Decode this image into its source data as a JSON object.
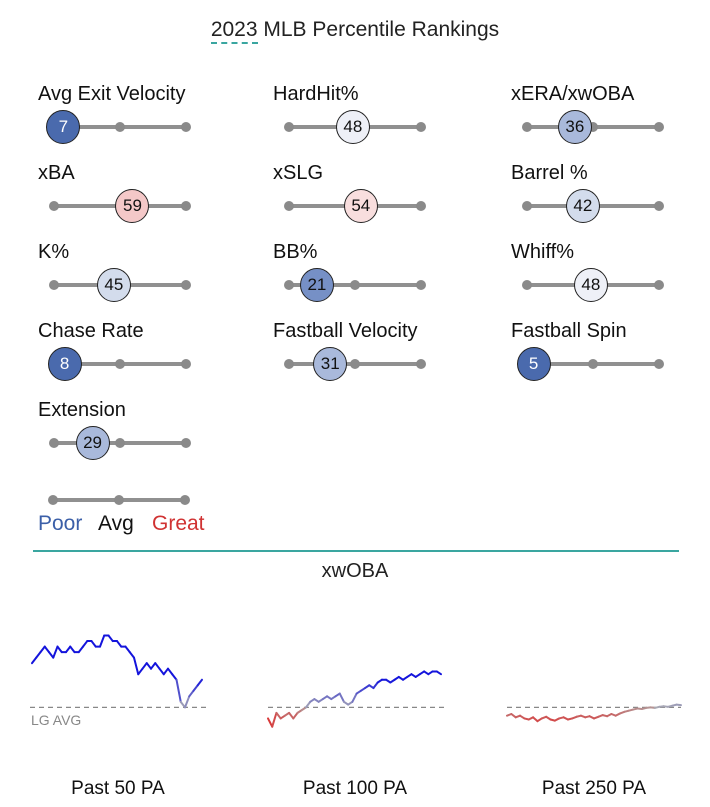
{
  "title_year": "2023",
  "title_rest": " MLB Percentile Rankings",
  "metrics": [
    {
      "label": "Avg Exit Velocity",
      "value": 7
    },
    {
      "label": "HardHit%",
      "value": 48
    },
    {
      "label": "xERA/xwOBA",
      "value": 36
    },
    {
      "label": "xBA",
      "value": 59
    },
    {
      "label": "xSLG",
      "value": 54
    },
    {
      "label": "Barrel %",
      "value": 42
    },
    {
      "label": "K%",
      "value": 45
    },
    {
      "label": "BB%",
      "value": 21
    },
    {
      "label": "Whiff%",
      "value": 48
    },
    {
      "label": "Chase Rate",
      "value": 8
    },
    {
      "label": "Fastball Velocity",
      "value": 31
    },
    {
      "label": "Fastball Spin",
      "value": 5
    },
    {
      "label": "Extension",
      "value": 29
    }
  ],
  "legend": {
    "poor": "Poor",
    "avg": "Avg",
    "great": "Great"
  },
  "colors": {
    "poor": "#3b5fa8",
    "great": "#d03232",
    "accent": "#3aa6a0",
    "track": "#909090"
  },
  "xwoba_title": "xwOBA",
  "lg_avg_label": "LG AVG",
  "chart_data": {
    "type": "line",
    "title": "xwOBA",
    "reference_line": "LG AVG",
    "series": [
      {
        "name": "Past 50 PA",
        "values": [
          0.4,
          0.41,
          0.42,
          0.43,
          0.42,
          0.41,
          0.43,
          0.42,
          0.42,
          0.43,
          0.42,
          0.42,
          0.43,
          0.44,
          0.44,
          0.43,
          0.43,
          0.45,
          0.45,
          0.44,
          0.44,
          0.43,
          0.43,
          0.42,
          0.41,
          0.38,
          0.39,
          0.4,
          0.39,
          0.4,
          0.39,
          0.38,
          0.39,
          0.38,
          0.37,
          0.33,
          0.32,
          0.34,
          0.35,
          0.36,
          0.37
        ]
      },
      {
        "name": "Past 100 PA",
        "values": [
          0.3,
          0.285,
          0.31,
          0.3,
          0.305,
          0.31,
          0.3,
          0.31,
          0.315,
          0.32,
          0.33,
          0.335,
          0.33,
          0.335,
          0.34,
          0.335,
          0.34,
          0.345,
          0.33,
          0.325,
          0.33,
          0.345,
          0.35,
          0.355,
          0.36,
          0.355,
          0.365,
          0.37,
          0.37,
          0.365,
          0.37,
          0.375,
          0.37,
          0.375,
          0.38,
          0.375,
          0.38,
          0.385,
          0.38,
          0.385,
          0.385,
          0.38
        ]
      },
      {
        "name": "Past 250 PA",
        "values": [
          0.305,
          0.308,
          0.302,
          0.305,
          0.3,
          0.298,
          0.302,
          0.295,
          0.3,
          0.303,
          0.298,
          0.296,
          0.3,
          0.302,
          0.298,
          0.3,
          0.303,
          0.305,
          0.302,
          0.304,
          0.3,
          0.303,
          0.306,
          0.304,
          0.308,
          0.305,
          0.309,
          0.312,
          0.314,
          0.316,
          0.318,
          0.317,
          0.319,
          0.32,
          0.319,
          0.321,
          0.322,
          0.321,
          0.323,
          0.325,
          0.324
        ]
      }
    ]
  }
}
